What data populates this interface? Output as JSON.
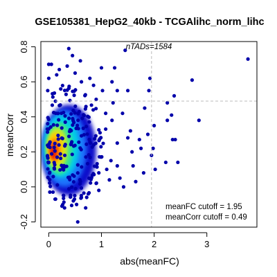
{
  "chart_data": {
    "type": "scatter",
    "title": "GSE105381_HepG2_40kb - TCGAlihc_norm_lihc",
    "xlabel": "abs(meanFC)",
    "ylabel": "meanCorr",
    "xlim": [
      -0.15,
      3.95
    ],
    "ylim": [
      -0.23,
      0.83
    ],
    "x_ticks": [
      0,
      1,
      2,
      3
    ],
    "x_tick_labels": [
      "0",
      "1",
      "2",
      "3"
    ],
    "y_ticks": [
      -0.2,
      0.0,
      0.2,
      0.4,
      0.6,
      0.8
    ],
    "y_tick_labels": [
      "-0.2",
      "0.0",
      "0.2",
      "0.4",
      "0.6",
      "0.8"
    ],
    "density_coloring": "blue (low density) to red (high density) smoothed scatter",
    "n_tads_label": "nTADs=1584",
    "cutoff_lines": {
      "meanFC": 1.95,
      "meanCorr": 0.49
    },
    "annotations": [
      "meanFC cutoff = 1.95",
      "meanCorr cutoff = 0.49"
    ],
    "colors": {
      "points": "#0000AA",
      "cutoff_line": "#BBBBBB",
      "text": "#000000"
    },
    "outlier_points": [
      {
        "x": 3.78,
        "y": 0.73
      },
      {
        "x": 2.72,
        "y": 0.61
      },
      {
        "x": 2.38,
        "y": 0.52
      },
      {
        "x": 2.33,
        "y": 0.41
      },
      {
        "x": 2.85,
        "y": 0.38
      },
      {
        "x": 2.35,
        "y": 0.27
      },
      {
        "x": 2.22,
        "y": 0.14
      },
      {
        "x": 2.45,
        "y": 0.14
      },
      {
        "x": 2.0,
        "y": 0.35
      },
      {
        "x": 1.98,
        "y": 0.22
      },
      {
        "x": 1.95,
        "y": 0.18
      },
      {
        "x": 2.02,
        "y": 0.1
      },
      {
        "x": 1.82,
        "y": 0.45
      },
      {
        "x": 1.9,
        "y": 0.55
      },
      {
        "x": 1.92,
        "y": 0.62
      },
      {
        "x": 1.88,
        "y": 0.3
      },
      {
        "x": 1.72,
        "y": 0.27
      },
      {
        "x": 1.75,
        "y": 0.22
      },
      {
        "x": 1.8,
        "y": 0.08
      },
      {
        "x": 1.65,
        "y": 0.03
      },
      {
        "x": 1.55,
        "y": 0.32
      },
      {
        "x": 1.5,
        "y": 0.55
      },
      {
        "x": 1.58,
        "y": 0.2
      },
      {
        "x": 1.6,
        "y": 0.12
      },
      {
        "x": 1.4,
        "y": 0.42
      },
      {
        "x": 1.45,
        "y": 0.78
      },
      {
        "x": 1.35,
        "y": 0.05
      },
      {
        "x": 1.42,
        "y": 0.0
      },
      {
        "x": 1.3,
        "y": 0.55
      },
      {
        "x": 1.25,
        "y": 0.68
      },
      {
        "x": 1.2,
        "y": 0.6
      },
      {
        "x": 1.22,
        "y": 0.48
      },
      {
        "x": 1.1,
        "y": 0.1
      },
      {
        "x": 1.15,
        "y": 0.04
      },
      {
        "x": 0.9,
        "y": 0.02
      },
      {
        "x": 0.95,
        "y": -0.02
      },
      {
        "x": 0.7,
        "y": -0.12
      },
      {
        "x": 0.72,
        "y": -0.06
      },
      {
        "x": 0.55,
        "y": -0.2
      },
      {
        "x": 0.75,
        "y": -0.04
      },
      {
        "x": 0.25,
        "y": -0.11
      },
      {
        "x": 0.3,
        "y": -0.12
      },
      {
        "x": 0.12,
        "y": -0.07
      },
      {
        "x": 0.08,
        "y": -0.03
      },
      {
        "x": 0.38,
        "y": 0.79
      },
      {
        "x": 0.45,
        "y": 0.75
      },
      {
        "x": 0.05,
        "y": 0.7
      },
      {
        "x": 0.0,
        "y": 0.62
      },
      {
        "x": 0.6,
        "y": 0.72
      },
      {
        "x": 0.2,
        "y": 0.67
      },
      {
        "x": 0.78,
        "y": 0.62
      },
      {
        "x": 1.0,
        "y": 0.68
      },
      {
        "x": 2.25,
        "y": 0.48
      },
      {
        "x": 2.25,
        "y": 0.38
      },
      {
        "x": 2.4,
        "y": 0.27
      },
      {
        "x": 0.0,
        "y": 0.7
      },
      {
        "x": -0.02,
        "y": 0.55
      },
      {
        "x": 1.08,
        "y": 0.33
      },
      {
        "x": 1.3,
        "y": 0.25
      },
      {
        "x": 1.5,
        "y": 0.28
      },
      {
        "x": 1.18,
        "y": 0.15
      },
      {
        "x": 1.3,
        "y": 0.12
      },
      {
        "x": 0.95,
        "y": 0.08
      },
      {
        "x": 1.08,
        "y": 0.42
      },
      {
        "x": 1.2,
        "y": 0.38
      },
      {
        "x": 0.9,
        "y": 0.5
      },
      {
        "x": 1.02,
        "y": 0.55
      },
      {
        "x": 0.85,
        "y": 0.58
      },
      {
        "x": 0.62,
        "y": 0.6
      },
      {
        "x": 0.5,
        "y": 0.65
      },
      {
        "x": 0.35,
        "y": 0.69
      },
      {
        "x": 0.15,
        "y": 0.64
      }
    ]
  }
}
